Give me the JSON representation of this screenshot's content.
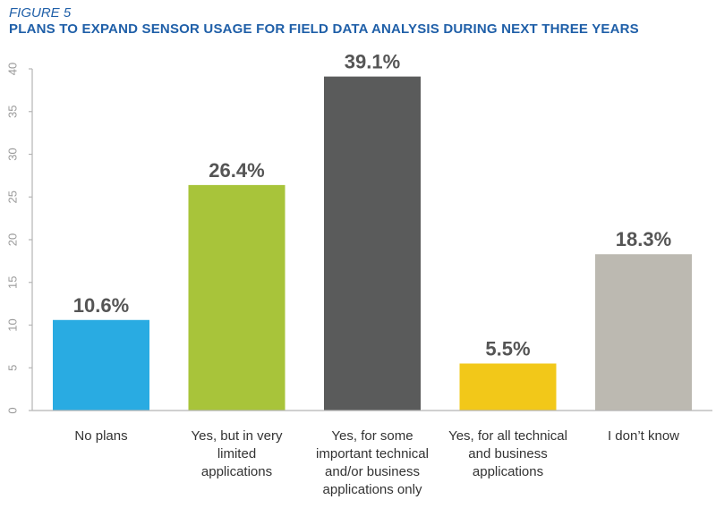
{
  "figure": {
    "label": "FIGURE 5",
    "title": "PLANS TO EXPAND SENSOR USAGE FOR FIELD DATA ANALYSIS DURING NEXT THREE YEARS"
  },
  "chart_data": {
    "type": "bar",
    "categories": [
      "No plans",
      "Yes, but in very limited applications",
      "Yes, for some important technical and/or business applications only",
      "Yes, for all technical and business applications",
      "I don’t know"
    ],
    "category_lines": [
      [
        "No plans"
      ],
      [
        "Yes, but in very",
        "limited",
        "applications"
      ],
      [
        "Yes, for some",
        "important technical",
        "and/or business",
        "applications only"
      ],
      [
        "Yes, for all technical",
        "and business",
        "applications"
      ],
      [
        "I don’t know"
      ]
    ],
    "values": [
      10.6,
      26.4,
      39.1,
      5.5,
      18.3
    ],
    "value_labels": [
      "10.6%",
      "26.4%",
      "39.1%",
      "5.5%",
      "18.3%"
    ],
    "colors": [
      "#29abe2",
      "#a8c43a",
      "#5a5b5b",
      "#f2c819",
      "#bcb9b1"
    ],
    "ylim": [
      0,
      40
    ],
    "yticks": [
      "0",
      "5",
      "10",
      "15",
      "20",
      "25",
      "30",
      "35",
      "40"
    ],
    "grid": false,
    "title": "PLANS TO EXPAND SENSOR USAGE FOR FIELD DATA ANALYSIS DURING NEXT THREE YEARS",
    "xlabel": "",
    "ylabel": ""
  }
}
